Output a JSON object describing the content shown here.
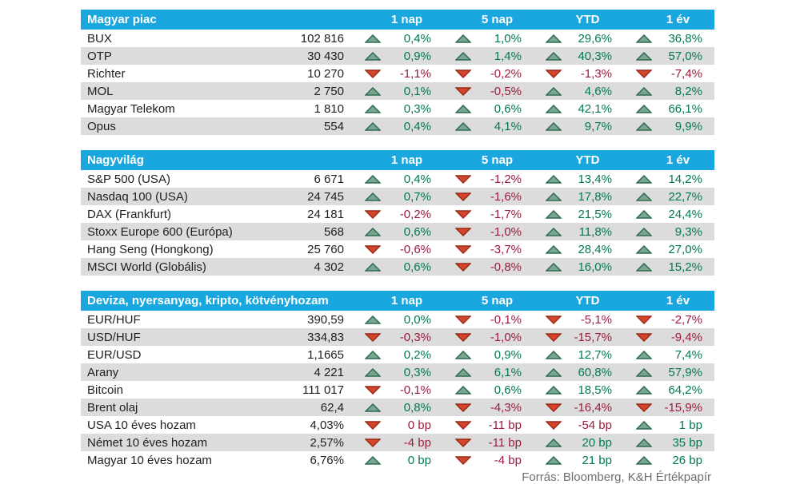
{
  "chart_data": [
    {
      "type": "table",
      "title": "Magyar piac",
      "columns": [
        "1 nap",
        "5 nap",
        "YTD",
        "1 év"
      ],
      "rows": [
        {
          "name": "BUX",
          "value": "102 816",
          "changes": [
            {
              "dir": "up",
              "text": "0,4%"
            },
            {
              "dir": "up",
              "text": "1,0%"
            },
            {
              "dir": "up",
              "text": "29,6%"
            },
            {
              "dir": "up",
              "text": "36,8%"
            }
          ]
        },
        {
          "name": "OTP",
          "value": "30 430",
          "changes": [
            {
              "dir": "up",
              "text": "0,9%"
            },
            {
              "dir": "up",
              "text": "1,4%"
            },
            {
              "dir": "up",
              "text": "40,3%"
            },
            {
              "dir": "up",
              "text": "57,0%"
            }
          ]
        },
        {
          "name": "Richter",
          "value": "10 270",
          "changes": [
            {
              "dir": "down",
              "text": "-1,1%"
            },
            {
              "dir": "down",
              "text": "-0,2%"
            },
            {
              "dir": "down",
              "text": "-1,3%"
            },
            {
              "dir": "down",
              "text": "-7,4%"
            }
          ]
        },
        {
          "name": "MOL",
          "value": "2 750",
          "changes": [
            {
              "dir": "up",
              "text": "0,1%"
            },
            {
              "dir": "down",
              "text": "-0,5%"
            },
            {
              "dir": "up",
              "text": "4,6%"
            },
            {
              "dir": "up",
              "text": "8,2%"
            }
          ]
        },
        {
          "name": "Magyar Telekom",
          "value": "1 810",
          "changes": [
            {
              "dir": "up",
              "text": "0,3%"
            },
            {
              "dir": "up",
              "text": "0,6%"
            },
            {
              "dir": "up",
              "text": "42,1%"
            },
            {
              "dir": "up",
              "text": "66,1%"
            }
          ]
        },
        {
          "name": "Opus",
          "value": "554",
          "changes": [
            {
              "dir": "up",
              "text": "0,4%"
            },
            {
              "dir": "up",
              "text": "4,1%"
            },
            {
              "dir": "up",
              "text": "9,7%"
            },
            {
              "dir": "up",
              "text": "9,9%"
            }
          ]
        }
      ]
    },
    {
      "type": "table",
      "title": "Nagyvilág",
      "columns": [
        "1 nap",
        "5 nap",
        "YTD",
        "1 év"
      ],
      "rows": [
        {
          "name": "S&P 500 (USA)",
          "value": "6 671",
          "changes": [
            {
              "dir": "up",
              "text": "0,4%"
            },
            {
              "dir": "down",
              "text": "-1,2%"
            },
            {
              "dir": "up",
              "text": "13,4%"
            },
            {
              "dir": "up",
              "text": "14,2%"
            }
          ]
        },
        {
          "name": "Nasdaq 100 (USA)",
          "value": "24 745",
          "changes": [
            {
              "dir": "up",
              "text": "0,7%"
            },
            {
              "dir": "down",
              "text": "-1,6%"
            },
            {
              "dir": "up",
              "text": "17,8%"
            },
            {
              "dir": "up",
              "text": "22,7%"
            }
          ]
        },
        {
          "name": "DAX (Frankfurt)",
          "value": "24 181",
          "changes": [
            {
              "dir": "down",
              "text": "-0,2%"
            },
            {
              "dir": "down",
              "text": "-1,7%"
            },
            {
              "dir": "up",
              "text": "21,5%"
            },
            {
              "dir": "up",
              "text": "24,4%"
            }
          ]
        },
        {
          "name": "Stoxx Europe 600 (Európa)",
          "value": "568",
          "changes": [
            {
              "dir": "up",
              "text": "0,6%"
            },
            {
              "dir": "down",
              "text": "-1,0%"
            },
            {
              "dir": "up",
              "text": "11,8%"
            },
            {
              "dir": "up",
              "text": "9,3%"
            }
          ]
        },
        {
          "name": "Hang Seng (Hongkong)",
          "value": "25 760",
          "changes": [
            {
              "dir": "down",
              "text": "-0,6%"
            },
            {
              "dir": "down",
              "text": "-3,7%"
            },
            {
              "dir": "up",
              "text": "28,4%"
            },
            {
              "dir": "up",
              "text": "27,0%"
            }
          ]
        },
        {
          "name": "MSCI World (Globális)",
          "value": "4 302",
          "changes": [
            {
              "dir": "up",
              "text": "0,6%"
            },
            {
              "dir": "down",
              "text": "-0,8%"
            },
            {
              "dir": "up",
              "text": "16,0%"
            },
            {
              "dir": "up",
              "text": "15,2%"
            }
          ]
        }
      ]
    },
    {
      "type": "table",
      "title": "Deviza, nyersanyag, kripto, kötvényhozam",
      "columns": [
        "1 nap",
        "5 nap",
        "YTD",
        "1 év"
      ],
      "rows": [
        {
          "name": "EUR/HUF",
          "value": "390,59",
          "changes": [
            {
              "dir": "up",
              "text": "0,0%"
            },
            {
              "dir": "down",
              "text": "-0,1%"
            },
            {
              "dir": "down",
              "text": "-5,1%"
            },
            {
              "dir": "down",
              "text": "-2,7%"
            }
          ]
        },
        {
          "name": "USD/HUF",
          "value": "334,83",
          "changes": [
            {
              "dir": "down",
              "text": "-0,3%"
            },
            {
              "dir": "down",
              "text": "-1,0%"
            },
            {
              "dir": "down",
              "text": "-15,7%"
            },
            {
              "dir": "down",
              "text": "-9,4%"
            }
          ]
        },
        {
          "name": "EUR/USD",
          "value": "1,1665",
          "changes": [
            {
              "dir": "up",
              "text": "0,2%"
            },
            {
              "dir": "up",
              "text": "0,9%"
            },
            {
              "dir": "up",
              "text": "12,7%"
            },
            {
              "dir": "up",
              "text": "7,4%"
            }
          ]
        },
        {
          "name": "Arany",
          "value": "4 221",
          "changes": [
            {
              "dir": "up",
              "text": "0,3%"
            },
            {
              "dir": "up",
              "text": "6,1%"
            },
            {
              "dir": "up",
              "text": "60,8%"
            },
            {
              "dir": "up",
              "text": "57,9%"
            }
          ]
        },
        {
          "name": "Bitcoin",
          "value": "111 017",
          "changes": [
            {
              "dir": "down",
              "text": "-0,1%"
            },
            {
              "dir": "up",
              "text": "0,6%"
            },
            {
              "dir": "up",
              "text": "18,5%"
            },
            {
              "dir": "up",
              "text": "64,2%"
            }
          ]
        },
        {
          "name": "Brent olaj",
          "value": "62,4",
          "changes": [
            {
              "dir": "up",
              "text": "0,8%"
            },
            {
              "dir": "down",
              "text": "-4,3%"
            },
            {
              "dir": "down",
              "text": "-16,4%"
            },
            {
              "dir": "down",
              "text": "-15,9%"
            }
          ]
        },
        {
          "name": "USA 10 éves hozam",
          "value": "4,03%",
          "changes": [
            {
              "dir": "down",
              "text": "0 bp"
            },
            {
              "dir": "down",
              "text": "-11 bp"
            },
            {
              "dir": "down",
              "text": "-54 bp"
            },
            {
              "dir": "up",
              "text": "1 bp"
            }
          ]
        },
        {
          "name": "Német 10 éves hozam",
          "value": "2,57%",
          "changes": [
            {
              "dir": "down",
              "text": "-4 bp"
            },
            {
              "dir": "down",
              "text": "-11 bp"
            },
            {
              "dir": "up",
              "text": "20 bp"
            },
            {
              "dir": "up",
              "text": "35 bp"
            }
          ]
        },
        {
          "name": "Magyar 10 éves hozam",
          "value": "6,76%",
          "changes": [
            {
              "dir": "up",
              "text": "0 bp"
            },
            {
              "dir": "down",
              "text": "-4 bp"
            },
            {
              "dir": "up",
              "text": "21 bp"
            },
            {
              "dir": "up",
              "text": "26 bp"
            }
          ]
        }
      ]
    }
  ],
  "footer": {
    "source": "Forrás: Bloomberg, K&H Értékpapír"
  },
  "icons": {
    "up": "up-triangle-icon",
    "down": "down-triangle-icon"
  },
  "colors": {
    "header_bg": "#1aa7e0",
    "header_text": "#ffffff",
    "row_alt_bg": "#dcdcdc",
    "text": "#1e1e1e",
    "positive_text": "#007a4e",
    "negative_text": "#9e1b3c",
    "up_triangle_fill": "#78a58d",
    "up_triangle_stroke": "#2e6a52",
    "down_triangle_fill": "#d4452c",
    "down_triangle_stroke": "#9c2a18",
    "footer_text": "#6e6e6e"
  }
}
